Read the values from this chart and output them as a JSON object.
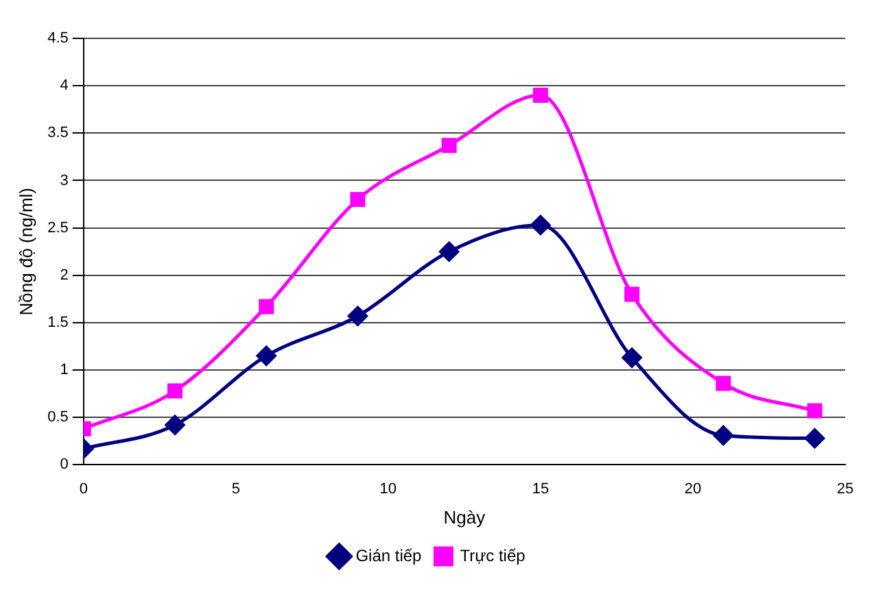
{
  "chart_data": {
    "type": "line",
    "xlabel": "Ngày",
    "ylabel": "Nồng độ (ng/ml)",
    "x": [
      0,
      3,
      6,
      9,
      12,
      15,
      18,
      21,
      24
    ],
    "xlim": [
      0,
      25
    ],
    "xticks": [
      0,
      5,
      10,
      15,
      20,
      25
    ],
    "ylim": [
      0,
      4.5
    ],
    "yticks": [
      0,
      0.5,
      1,
      1.5,
      2,
      2.5,
      3,
      3.5,
      4,
      4.5
    ],
    "grid": "y",
    "legend": "bottom",
    "series": [
      {
        "name": "Gián tiếp",
        "color": "#000080",
        "marker": "diamond",
        "values": [
          0.17,
          0.42,
          1.15,
          1.57,
          2.25,
          2.53,
          1.13,
          0.31,
          0.28
        ]
      },
      {
        "name": "Trực tiếp",
        "color": "#ff00ff",
        "marker": "square",
        "values": [
          0.38,
          0.78,
          1.67,
          2.8,
          3.37,
          3.9,
          1.8,
          0.86,
          0.57
        ]
      }
    ]
  }
}
